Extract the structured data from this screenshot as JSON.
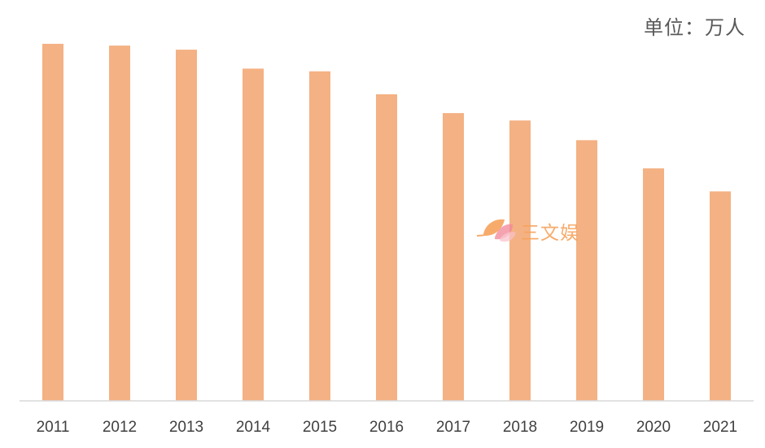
{
  "unit_label": "单位：万人",
  "watermark": {
    "text": "三文娱",
    "icon": "leaf-logo-icon"
  },
  "colors": {
    "bar": "#f4b183",
    "axis": "#d9d9d9",
    "tick_text": "#404040",
    "unit_text": "#595959",
    "watermark": "#f7a35c"
  },
  "chart_data": {
    "type": "bar",
    "categories": [
      "2011",
      "2012",
      "2013",
      "2014",
      "2015",
      "2016",
      "2017",
      "2018",
      "2019",
      "2020",
      "2021"
    ],
    "values": [
      1582,
      1574,
      1556,
      1472,
      1460,
      1358,
      1275,
      1242,
      1155,
      1030,
      928
    ],
    "unit": "万人",
    "ylim": [
      0,
      1740
    ],
    "grid": false,
    "legend": "none"
  }
}
